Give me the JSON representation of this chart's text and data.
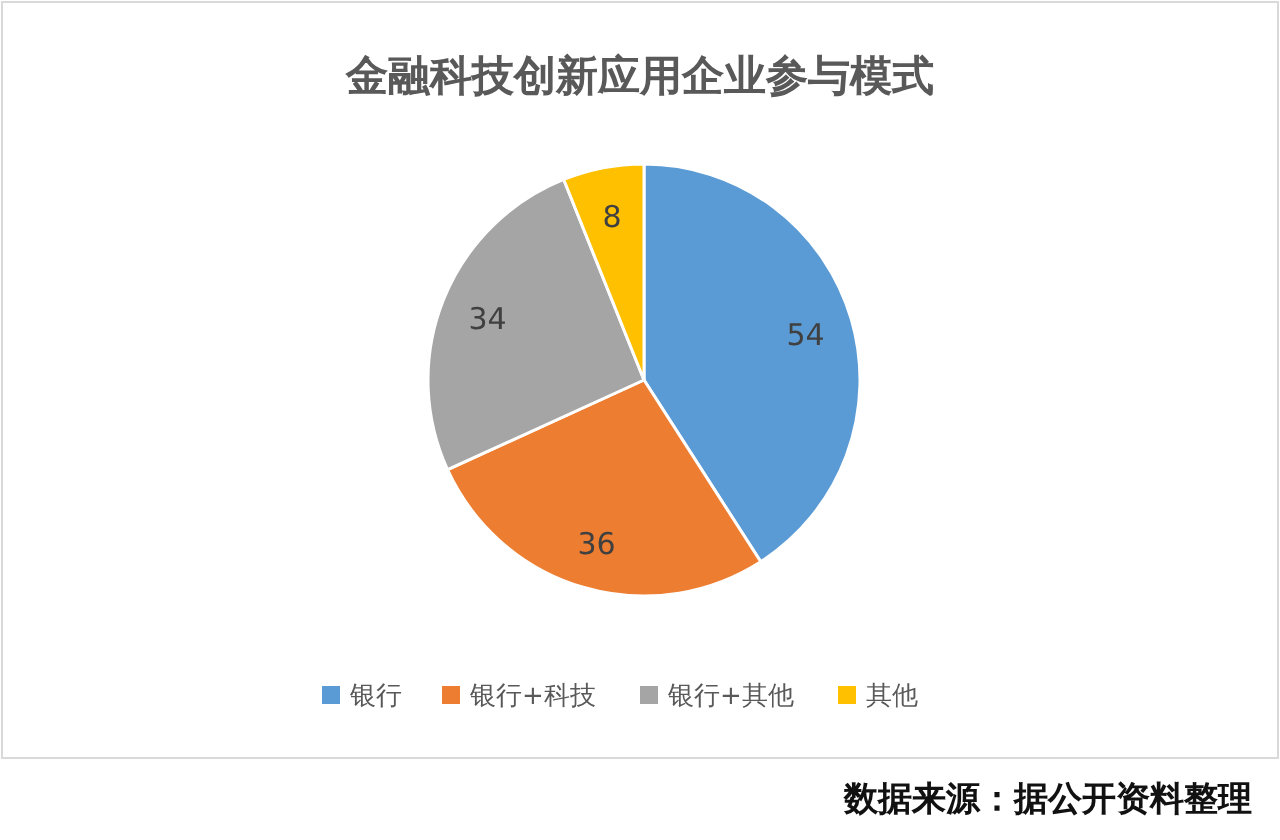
{
  "chart_data": {
    "type": "pie",
    "title": "金融科技创新应用企业参与模式",
    "categories": [
      "银行",
      "银行+科技",
      "银行+其他",
      "其他"
    ],
    "values": [
      54,
      36,
      34,
      8
    ],
    "colors": [
      "#5b9bd5",
      "#ed7d31",
      "#a5a5a5",
      "#ffc000"
    ],
    "data_labels": true,
    "legend": "bottom",
    "annotations": [
      "数据来源：据公开资料整理"
    ]
  }
}
